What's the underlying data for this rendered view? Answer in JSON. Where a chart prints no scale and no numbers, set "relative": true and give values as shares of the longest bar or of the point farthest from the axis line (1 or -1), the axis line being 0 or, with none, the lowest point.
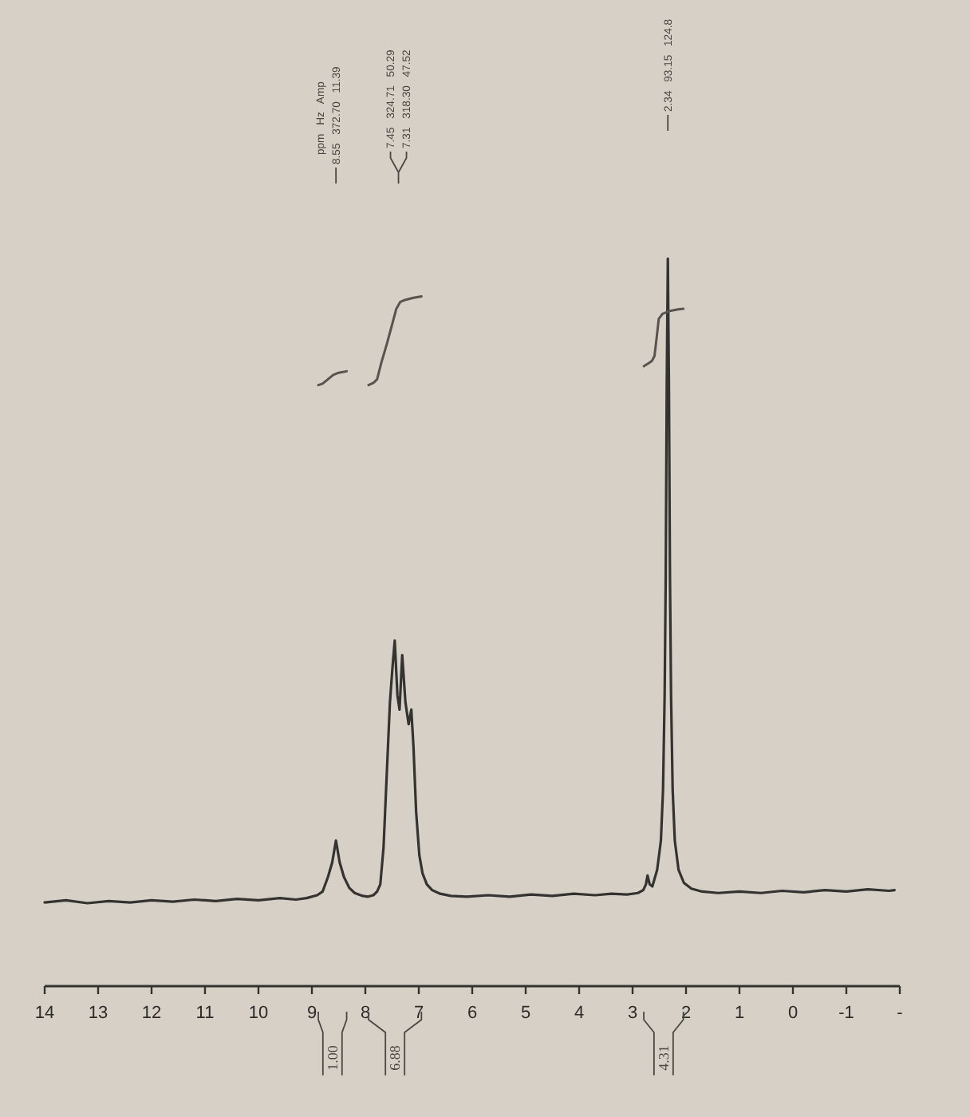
{
  "chart_data": {
    "type": "line",
    "relative": true,
    "xlim": [
      14,
      -2
    ],
    "xticks": [
      14,
      13,
      12,
      11,
      10,
      9,
      8,
      7,
      6,
      5,
      4,
      3,
      2,
      1,
      0,
      -1,
      {
        "value": -2,
        "label": "-"
      }
    ],
    "series": [
      {
        "color": "#353331",
        "x": [
          14,
          13.6,
          13.2,
          12.8,
          12.4,
          12,
          11.6,
          11.2,
          10.8,
          10.4,
          10,
          9.6,
          9.3,
          9.1,
          8.9,
          8.8,
          8.7,
          8.62,
          8.55,
          8.48,
          8.4,
          8.3,
          8.2,
          8.05,
          7.95,
          7.85,
          7.78,
          7.72,
          7.66,
          7.6,
          7.54,
          7.49,
          7.45,
          7.4,
          7.36,
          7.31,
          7.25,
          7.19,
          7.14,
          7.1,
          7.05,
          6.99,
          6.93,
          6.85,
          6.75,
          6.6,
          6.4,
          6.1,
          5.7,
          5.3,
          4.9,
          4.5,
          4.1,
          3.7,
          3.4,
          3.1,
          2.9,
          2.8,
          2.75,
          2.72,
          2.68,
          2.63,
          2.54,
          2.47,
          2.43,
          2.4,
          2.38,
          2.36,
          2.34,
          2.32,
          2.3,
          2.28,
          2.25,
          2.21,
          2.14,
          2.04,
          1.9,
          1.7,
          1.4,
          1,
          0.6,
          0.2,
          -0.2,
          -0.6,
          -1,
          -1.4,
          -1.8,
          -1.9
        ],
        "values": [
          0.115,
          0.118,
          0.114,
          0.117,
          0.115,
          0.118,
          0.116,
          0.119,
          0.117,
          0.12,
          0.118,
          0.121,
          0.119,
          0.121,
          0.125,
          0.13,
          0.15,
          0.17,
          0.2,
          0.17,
          0.15,
          0.135,
          0.128,
          0.124,
          0.123,
          0.125,
          0.13,
          0.14,
          0.19,
          0.29,
          0.39,
          0.44,
          0.475,
          0.4,
          0.38,
          0.455,
          0.39,
          0.36,
          0.38,
          0.33,
          0.24,
          0.18,
          0.155,
          0.14,
          0.132,
          0.127,
          0.124,
          0.123,
          0.125,
          0.123,
          0.126,
          0.124,
          0.127,
          0.125,
          0.127,
          0.126,
          0.128,
          0.132,
          0.14,
          0.152,
          0.14,
          0.137,
          0.16,
          0.2,
          0.27,
          0.4,
          0.56,
          0.83,
          1,
          0.83,
          0.56,
          0.4,
          0.27,
          0.2,
          0.16,
          0.142,
          0.134,
          0.13,
          0.128,
          0.13,
          0.128,
          0.131,
          0.129,
          0.132,
          0.13,
          0.133,
          0.131,
          0.132
        ]
      },
      {
        "color": "#57534f",
        "x": [
          8.88,
          8.8,
          8.7,
          8.6,
          8.5,
          8.35
        ],
        "values": [
          0.826,
          0.828,
          0.834,
          0.84,
          0.843,
          0.845
        ]
      },
      {
        "color": "#57534f",
        "x": [
          7.94,
          7.85,
          7.78,
          7.7,
          7.6,
          7.5,
          7.42,
          7.35,
          7.26,
          7.1,
          6.95
        ],
        "values": [
          0.826,
          0.829,
          0.834,
          0.857,
          0.882,
          0.909,
          0.931,
          0.94,
          0.943,
          0.946,
          0.948
        ]
      },
      {
        "color": "#57534f",
        "x": [
          2.79,
          2.7,
          2.64,
          2.59,
          2.55,
          2.51,
          2.44,
          2.3,
          2.15,
          2.05
        ],
        "values": [
          0.852,
          0.856,
          0.859,
          0.866,
          0.891,
          0.917,
          0.924,
          0.928,
          0.93,
          0.931
        ]
      }
    ],
    "annotations": [
      "ppm Hz Amp",
      "8.55 372.70 11.39",
      "7.45 324.71 50.29",
      "7.31 318.30 47.52",
      "2.34 93.15 124.8",
      "1.00",
      "6.88",
      "4.31"
    ]
  }
}
